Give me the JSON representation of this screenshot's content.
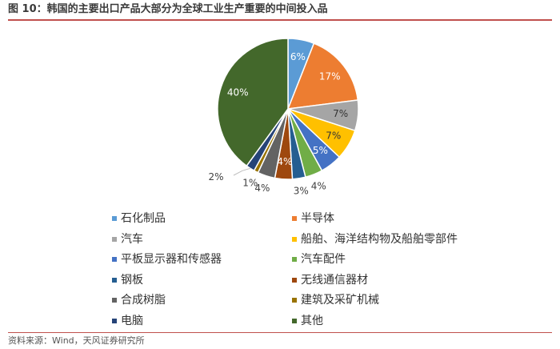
{
  "header": {
    "title": "图 10：韩国的主要出口产品大部分为全球工业生产重要的中间投入品"
  },
  "footer": {
    "source": "资料来源：Wind，天风证券研究所"
  },
  "chart_data": {
    "type": "pie",
    "title": "",
    "legend_position": "bottom",
    "slices": [
      {
        "label": "石化制品",
        "value": 6,
        "display": "6%",
        "color": "#5b9bd5"
      },
      {
        "label": "半导体",
        "value": 17,
        "display": "17%",
        "color": "#ed7d31"
      },
      {
        "label": "汽车",
        "value": 7,
        "display": "7%",
        "color": "#a5a5a5"
      },
      {
        "label": "船舶、海洋结构物及船舶零部件",
        "value": 7,
        "display": "7%",
        "color": "#ffc000"
      },
      {
        "label": "平板显示器和传感器",
        "value": 5,
        "display": "5%",
        "color": "#4472c4"
      },
      {
        "label": "汽车配件",
        "value": 4,
        "display": "4%",
        "color": "#70ad47"
      },
      {
        "label": "钢板",
        "value": 3,
        "display": "3%",
        "color": "#255e91"
      },
      {
        "label": "无线通信器材",
        "value": 4,
        "display": "4%",
        "color": "#9e480e"
      },
      {
        "label": "合成树脂",
        "value": 4,
        "display": "4%",
        "color": "#636363"
      },
      {
        "label": "建筑及采矿机械",
        "value": 1,
        "display": "1%",
        "color": "#997300"
      },
      {
        "label": "电脑",
        "value": 2,
        "display": "2%",
        "color": "#264478"
      },
      {
        "label": "其他",
        "value": 40,
        "display": "40%",
        "color": "#43682b"
      }
    ]
  }
}
